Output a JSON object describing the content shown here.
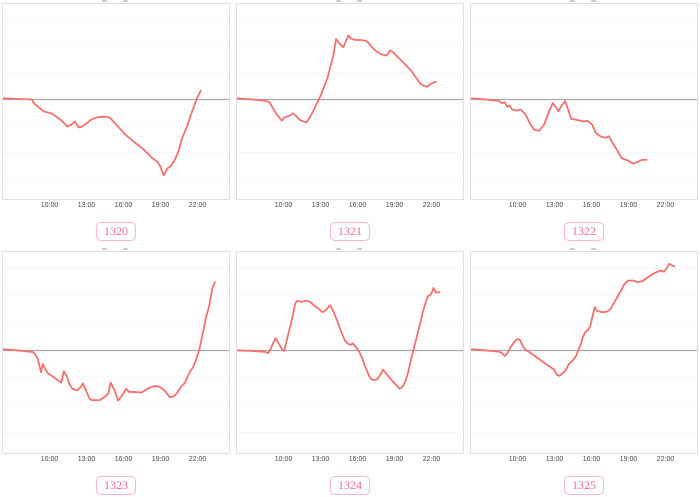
{
  "page": {
    "background": "#ffffff",
    "layout": "3x2 grid of mini intraday line charts"
  },
  "colors": {
    "line": "#f3716f",
    "zero_line": "#a8a8a8",
    "grid_line": "#ececec",
    "plot_border": "#e0e0e0",
    "tick_text": "#494949",
    "badge_text": "#ef6e8c",
    "badge_border": "#f7b8c8"
  },
  "axis": {
    "tick_labels": [
      "10:00",
      "13:00",
      "16:00",
      "19:00",
      "22:00"
    ],
    "tick_hours": [
      10,
      13,
      16,
      19,
      22
    ]
  },
  "chart_data": [
    {
      "type": "line",
      "id_label": "1320",
      "x_tick_labels": [
        "10:00",
        "13:00",
        "16:00",
        "19:00",
        "22:00"
      ],
      "x_range_hours": [
        6.1,
        22.3
      ],
      "baseline": 0,
      "y_unit": "relative change vs baseline, in horizontal-gridline units (no y-axis labels visible)",
      "ylim": [
        -3.6,
        3.6
      ],
      "grid": "horizontal dashed lines, solid gray zero line",
      "legend": "none",
      "points": [
        [
          6.1,
          0.05
        ],
        [
          7.5,
          0.02
        ],
        [
          8.6,
          0.0
        ],
        [
          8.8,
          -0.15
        ],
        [
          9.3,
          -0.35
        ],
        [
          9.6,
          -0.45
        ],
        [
          10.2,
          -0.52
        ],
        [
          10.7,
          -0.68
        ],
        [
          11.1,
          -0.83
        ],
        [
          11.5,
          -1.02
        ],
        [
          11.8,
          -0.95
        ],
        [
          12.1,
          -0.83
        ],
        [
          12.4,
          -1.05
        ],
        [
          12.7,
          -1.02
        ],
        [
          13.1,
          -0.88
        ],
        [
          13.4,
          -0.76
        ],
        [
          13.9,
          -0.67
        ],
        [
          14.4,
          -0.65
        ],
        [
          14.8,
          -0.66
        ],
        [
          15.0,
          -0.72
        ],
        [
          15.6,
          -1.02
        ],
        [
          16.2,
          -1.33
        ],
        [
          16.9,
          -1.6
        ],
        [
          17.7,
          -1.9
        ],
        [
          18.4,
          -2.22
        ],
        [
          18.8,
          -2.35
        ],
        [
          19.0,
          -2.5
        ],
        [
          19.3,
          -2.86
        ],
        [
          19.6,
          -2.6
        ],
        [
          19.9,
          -2.5
        ],
        [
          20.2,
          -2.28
        ],
        [
          20.5,
          -1.95
        ],
        [
          20.8,
          -1.45
        ],
        [
          21.2,
          -1.0
        ],
        [
          21.6,
          -0.45
        ],
        [
          22.0,
          0.05
        ],
        [
          22.3,
          0.33
        ]
      ]
    },
    {
      "type": "line",
      "id_label": "1321",
      "x_tick_labels": [
        "10:00",
        "13:00",
        "16:00",
        "19:00",
        "22:00"
      ],
      "x_range_hours": [
        6.1,
        22.4
      ],
      "baseline": 0,
      "y_unit": "relative change vs baseline, in horizontal-gridline units (no y-axis labels visible)",
      "ylim": [
        -3.6,
        3.6
      ],
      "grid": "horizontal dashed lines, solid gray zero line",
      "legend": "none",
      "points": [
        [
          6.1,
          0.04
        ],
        [
          7.5,
          0.0
        ],
        [
          8.6,
          -0.05
        ],
        [
          8.9,
          -0.1
        ],
        [
          9.4,
          -0.5
        ],
        [
          9.9,
          -0.8
        ],
        [
          10.1,
          -0.68
        ],
        [
          10.5,
          -0.62
        ],
        [
          10.8,
          -0.52
        ],
        [
          11.0,
          -0.6
        ],
        [
          11.4,
          -0.78
        ],
        [
          11.9,
          -0.87
        ],
        [
          12.3,
          -0.57
        ],
        [
          12.7,
          -0.19
        ],
        [
          13.1,
          0.19
        ],
        [
          13.6,
          0.8
        ],
        [
          14.1,
          1.7
        ],
        [
          14.3,
          2.28
        ],
        [
          14.6,
          2.1
        ],
        [
          14.9,
          1.97
        ],
        [
          15.3,
          2.42
        ],
        [
          15.5,
          2.3
        ],
        [
          15.8,
          2.25
        ],
        [
          16.4,
          2.24
        ],
        [
          16.8,
          2.2
        ],
        [
          17.2,
          1.98
        ],
        [
          17.6,
          1.8
        ],
        [
          18.0,
          1.7
        ],
        [
          18.4,
          1.66
        ],
        [
          18.7,
          1.85
        ],
        [
          19.0,
          1.75
        ],
        [
          19.3,
          1.6
        ],
        [
          19.9,
          1.33
        ],
        [
          20.4,
          1.08
        ],
        [
          20.8,
          0.82
        ],
        [
          21.1,
          0.62
        ],
        [
          21.4,
          0.52
        ],
        [
          21.7,
          0.48
        ],
        [
          22.0,
          0.6
        ],
        [
          22.4,
          0.67
        ]
      ]
    },
    {
      "type": "line",
      "id_label": "1322",
      "x_tick_labels": [
        "10:00",
        "13:00",
        "16:00",
        "19:00",
        "22:00"
      ],
      "x_range_hours": [
        6.1,
        20.5
      ],
      "baseline": 0,
      "y_unit": "relative change vs baseline, in horizontal-gridline units (no y-axis labels visible)",
      "ylim": [
        -3.6,
        3.6
      ],
      "grid": "horizontal dashed lines, solid gray zero line",
      "legend": "none",
      "points": [
        [
          6.1,
          0.05
        ],
        [
          7.5,
          0.0
        ],
        [
          8.5,
          -0.05
        ],
        [
          8.8,
          -0.14
        ],
        [
          9.0,
          -0.1
        ],
        [
          9.2,
          -0.27
        ],
        [
          9.4,
          -0.22
        ],
        [
          9.6,
          -0.38
        ],
        [
          10.0,
          -0.42
        ],
        [
          10.3,
          -0.38
        ],
        [
          10.7,
          -0.57
        ],
        [
          11.1,
          -0.95
        ],
        [
          11.4,
          -1.14
        ],
        [
          11.8,
          -1.18
        ],
        [
          12.2,
          -0.95
        ],
        [
          12.5,
          -0.57
        ],
        [
          12.9,
          -0.13
        ],
        [
          13.2,
          -0.32
        ],
        [
          13.35,
          -0.44
        ],
        [
          13.6,
          -0.25
        ],
        [
          13.9,
          -0.06
        ],
        [
          14.1,
          -0.32
        ],
        [
          14.4,
          -0.73
        ],
        [
          14.8,
          -0.76
        ],
        [
          15.4,
          -0.83
        ],
        [
          15.7,
          -0.8
        ],
        [
          16.1,
          -0.95
        ],
        [
          16.4,
          -1.27
        ],
        [
          16.8,
          -1.4
        ],
        [
          17.2,
          -1.44
        ],
        [
          17.45,
          -1.38
        ],
        [
          17.7,
          -1.6
        ],
        [
          18.1,
          -1.9
        ],
        [
          18.5,
          -2.22
        ],
        [
          19.0,
          -2.3
        ],
        [
          19.4,
          -2.42
        ],
        [
          19.8,
          -2.35
        ],
        [
          20.1,
          -2.28
        ],
        [
          20.5,
          -2.27
        ]
      ]
    },
    {
      "type": "line",
      "id_label": "1323",
      "x_tick_labels": [
        "10:00",
        "13:00",
        "16:00",
        "19:00",
        "22:00"
      ],
      "x_range_hours": [
        6.1,
        23.45
      ],
      "baseline": 0,
      "y_unit": "relative change vs baseline, in horizontal-gridline units (no y-axis labels visible)",
      "ylim": [
        -3.6,
        3.6
      ],
      "grid": "horizontal dashed lines, solid gray zero line",
      "legend": "none",
      "points": [
        [
          6.1,
          0.04
        ],
        [
          7.5,
          0.0
        ],
        [
          8.7,
          -0.06
        ],
        [
          8.9,
          -0.15
        ],
        [
          9.1,
          -0.32
        ],
        [
          9.35,
          -0.8
        ],
        [
          9.5,
          -0.5
        ],
        [
          9.7,
          -0.68
        ],
        [
          9.9,
          -0.83
        ],
        [
          10.3,
          -0.95
        ],
        [
          10.7,
          -1.08
        ],
        [
          11.0,
          -1.18
        ],
        [
          11.2,
          -0.76
        ],
        [
          11.45,
          -0.95
        ],
        [
          11.65,
          -1.22
        ],
        [
          11.9,
          -1.4
        ],
        [
          12.3,
          -1.46
        ],
        [
          12.6,
          -1.33
        ],
        [
          12.75,
          -1.21
        ],
        [
          13.0,
          -1.46
        ],
        [
          13.3,
          -1.78
        ],
        [
          13.5,
          -1.82
        ],
        [
          14.1,
          -1.82
        ],
        [
          14.5,
          -1.71
        ],
        [
          14.8,
          -1.58
        ],
        [
          15.0,
          -1.18
        ],
        [
          15.3,
          -1.45
        ],
        [
          15.6,
          -1.84
        ],
        [
          16.0,
          -1.6
        ],
        [
          16.25,
          -1.4
        ],
        [
          16.5,
          -1.52
        ],
        [
          16.9,
          -1.52
        ],
        [
          17.5,
          -1.54
        ],
        [
          18.0,
          -1.4
        ],
        [
          18.4,
          -1.32
        ],
        [
          18.7,
          -1.3
        ],
        [
          19.0,
          -1.34
        ],
        [
          19.4,
          -1.48
        ],
        [
          19.8,
          -1.71
        ],
        [
          20.1,
          -1.68
        ],
        [
          20.35,
          -1.58
        ],
        [
          20.7,
          -1.33
        ],
        [
          21.0,
          -1.2
        ],
        [
          21.25,
          -0.95
        ],
        [
          21.45,
          -0.76
        ],
        [
          21.65,
          -0.64
        ],
        [
          21.9,
          -0.38
        ],
        [
          22.2,
          0.06
        ],
        [
          22.45,
          0.57
        ],
        [
          22.7,
          1.14
        ],
        [
          23.0,
          1.65
        ],
        [
          23.25,
          2.28
        ],
        [
          23.45,
          2.5
        ]
      ]
    },
    {
      "type": "line",
      "id_label": "1324",
      "x_tick_labels": [
        "10:00",
        "13:00",
        "16:00",
        "19:00",
        "22:00"
      ],
      "x_range_hours": [
        6.1,
        22.7
      ],
      "baseline": 0,
      "y_unit": "relative change vs baseline, in horizontal-gridline units (no y-axis labels visible)",
      "ylim": [
        -3.6,
        3.6
      ],
      "grid": "horizontal dashed lines, solid gray zero line",
      "legend": "none",
      "points": [
        [
          6.1,
          0.0
        ],
        [
          7.5,
          -0.02
        ],
        [
          8.5,
          -0.05
        ],
        [
          8.8,
          -0.1
        ],
        [
          9.0,
          0.06
        ],
        [
          9.25,
          0.32
        ],
        [
          9.4,
          0.45
        ],
        [
          9.65,
          0.25
        ],
        [
          9.9,
          0.06
        ],
        [
          10.1,
          -0.02
        ],
        [
          10.35,
          0.45
        ],
        [
          10.7,
          1.08
        ],
        [
          11.0,
          1.72
        ],
        [
          11.15,
          1.82
        ],
        [
          11.5,
          1.78
        ],
        [
          11.9,
          1.82
        ],
        [
          12.2,
          1.78
        ],
        [
          12.5,
          1.65
        ],
        [
          12.9,
          1.52
        ],
        [
          13.2,
          1.4
        ],
        [
          13.45,
          1.46
        ],
        [
          13.75,
          1.62
        ],
        [
          13.85,
          1.65
        ],
        [
          14.1,
          1.4
        ],
        [
          14.4,
          1.08
        ],
        [
          14.7,
          0.7
        ],
        [
          15.0,
          0.38
        ],
        [
          15.25,
          0.25
        ],
        [
          15.5,
          0.2
        ],
        [
          15.65,
          0.26
        ],
        [
          15.9,
          0.13
        ],
        [
          16.2,
          -0.06
        ],
        [
          16.45,
          -0.32
        ],
        [
          16.7,
          -0.63
        ],
        [
          17.0,
          -0.95
        ],
        [
          17.15,
          -1.05
        ],
        [
          17.4,
          -1.08
        ],
        [
          17.65,
          -1.06
        ],
        [
          17.9,
          -0.88
        ],
        [
          18.1,
          -0.7
        ],
        [
          18.35,
          -0.84
        ],
        [
          18.8,
          -1.08
        ],
        [
          19.2,
          -1.28
        ],
        [
          19.45,
          -1.4
        ],
        [
          19.7,
          -1.33
        ],
        [
          19.95,
          -1.1
        ],
        [
          20.15,
          -0.8
        ],
        [
          20.45,
          -0.2
        ],
        [
          20.75,
          0.33
        ],
        [
          21.05,
          0.85
        ],
        [
          21.3,
          1.35
        ],
        [
          21.6,
          1.8
        ],
        [
          21.75,
          1.98
        ],
        [
          22.0,
          2.05
        ],
        [
          22.2,
          2.28
        ],
        [
          22.4,
          2.12
        ],
        [
          22.7,
          2.13
        ]
      ]
    },
    {
      "type": "line",
      "id_label": "1325",
      "x_tick_labels": [
        "10:00",
        "13:00",
        "16:00",
        "19:00",
        "22:00"
      ],
      "x_range_hours": [
        6.1,
        22.75
      ],
      "baseline": 0,
      "y_unit": "relative change vs baseline, in horizontal-gridline units (no y-axis labels visible)",
      "ylim": [
        -3.6,
        3.6
      ],
      "grid": "horizontal dashed lines, solid gray zero line",
      "legend": "none",
      "points": [
        [
          6.1,
          0.04
        ],
        [
          7.5,
          0.0
        ],
        [
          8.5,
          -0.04
        ],
        [
          8.8,
          -0.1
        ],
        [
          9.0,
          -0.2
        ],
        [
          9.2,
          -0.12
        ],
        [
          9.5,
          0.13
        ],
        [
          9.8,
          0.32
        ],
        [
          10.05,
          0.42
        ],
        [
          10.25,
          0.38
        ],
        [
          10.45,
          0.18
        ],
        [
          10.7,
          0.02
        ],
        [
          11.0,
          -0.06
        ],
        [
          11.4,
          -0.19
        ],
        [
          11.8,
          -0.32
        ],
        [
          12.2,
          -0.45
        ],
        [
          12.6,
          -0.57
        ],
        [
          13.0,
          -0.7
        ],
        [
          13.25,
          -0.9
        ],
        [
          13.45,
          -0.93
        ],
        [
          13.65,
          -0.85
        ],
        [
          13.9,
          -0.76
        ],
        [
          14.2,
          -0.5
        ],
        [
          14.5,
          -0.38
        ],
        [
          14.8,
          -0.2
        ],
        [
          15.0,
          0.06
        ],
        [
          15.2,
          0.25
        ],
        [
          15.35,
          0.5
        ],
        [
          15.55,
          0.68
        ],
        [
          15.8,
          0.76
        ],
        [
          15.95,
          0.9
        ],
        [
          16.1,
          1.2
        ],
        [
          16.3,
          1.58
        ],
        [
          16.5,
          1.45
        ],
        [
          16.9,
          1.4
        ],
        [
          17.3,
          1.42
        ],
        [
          17.6,
          1.52
        ],
        [
          18.0,
          1.85
        ],
        [
          18.4,
          2.16
        ],
        [
          18.7,
          2.42
        ],
        [
          19.0,
          2.55
        ],
        [
          19.4,
          2.56
        ],
        [
          19.8,
          2.5
        ],
        [
          20.2,
          2.54
        ],
        [
          20.6,
          2.67
        ],
        [
          21.0,
          2.8
        ],
        [
          21.4,
          2.88
        ],
        [
          21.7,
          2.92
        ],
        [
          21.9,
          2.88
        ],
        [
          22.1,
          2.98
        ],
        [
          22.35,
          3.17
        ],
        [
          22.6,
          3.1
        ],
        [
          22.75,
          3.08
        ]
      ]
    }
  ]
}
